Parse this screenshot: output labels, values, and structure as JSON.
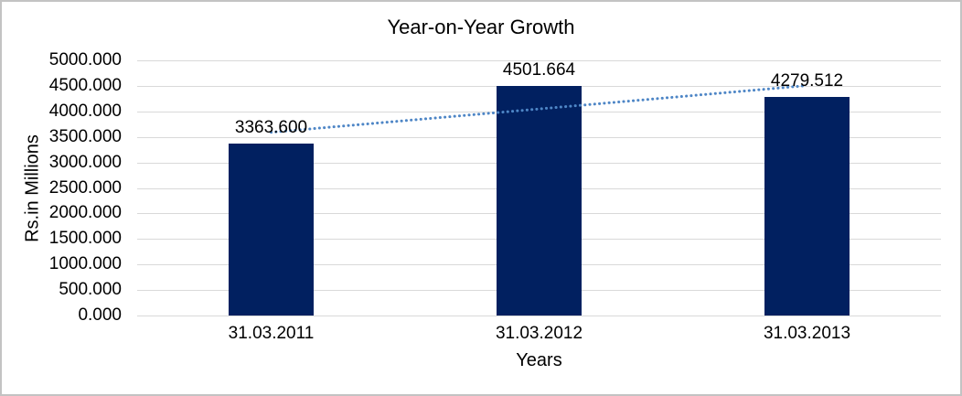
{
  "chart_data": {
    "type": "bar",
    "title": "Year-on-Year Growth",
    "xlabel": "Years",
    "ylabel": "Rs.in Millions",
    "categories": [
      "31.03.2011",
      "31.03.2012",
      "31.03.2013"
    ],
    "values": [
      3363.6,
      4501.664,
      4279.512
    ],
    "data_labels": [
      "3363.600",
      "4501.664",
      "4279.512"
    ],
    "y_tick_labels": [
      "0.000",
      "500.000",
      "1000.000",
      "1500.000",
      "2000.000",
      "2500.000",
      "3000.000",
      "3500.000",
      "4000.000",
      "4500.000",
      "5000.000"
    ],
    "ylim": [
      0,
      5000
    ],
    "ytick_step": 500,
    "grid": "horizontal",
    "legend_position": "none",
    "bar_color": "#012060",
    "gridline_color": "#d9d9d9",
    "text_color": "#000000",
    "trendline": {
      "type": "linear",
      "style": "dotted",
      "color": "#4e86c6",
      "start_value": 3590.3,
      "end_value": 4506.2
    }
  }
}
